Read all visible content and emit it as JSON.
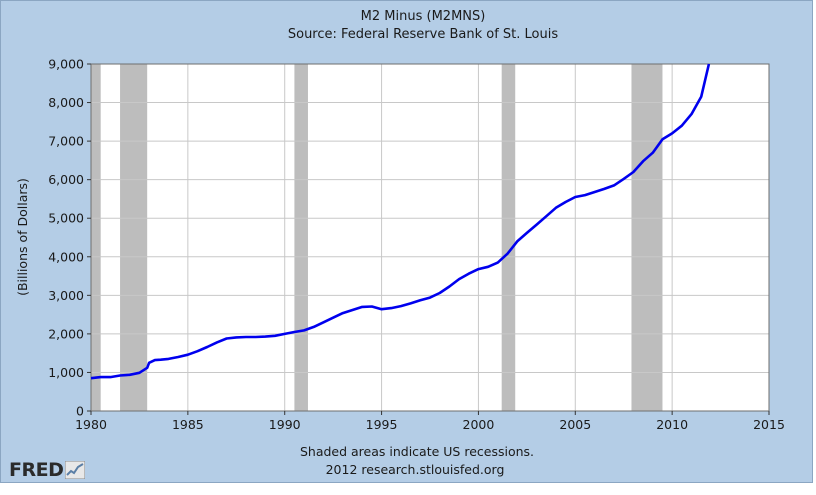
{
  "brand": {
    "logo_text": "FRED"
  },
  "notes": {
    "recession_note": "Shaded areas indicate US recessions.",
    "credit": "2012 research.stlouisfed.org"
  },
  "colors": {
    "background": "#b4cde6",
    "plot_bg": "#ffffff",
    "grid": "#c8c8c8",
    "recession": "#bdbdbd",
    "line": "#0000ee"
  },
  "chart_data": {
    "type": "line",
    "title": "M2 Minus (M2MNS)",
    "subtitle": "Source: Federal Reserve Bank of St. Louis",
    "xlabel": "",
    "ylabel": "(Billions of Dollars)",
    "xlim": [
      1980,
      2015
    ],
    "ylim": [
      0,
      9000
    ],
    "x_ticks": [
      1980,
      1985,
      1990,
      1995,
      2000,
      2005,
      2010,
      2015
    ],
    "x_tick_labels": [
      "1980",
      "1985",
      "1990",
      "1995",
      "2000",
      "2005",
      "2010",
      "2015"
    ],
    "y_ticks": [
      0,
      1000,
      2000,
      3000,
      4000,
      5000,
      6000,
      7000,
      8000,
      9000
    ],
    "y_tick_labels": [
      "0",
      "1,000",
      "2,000",
      "3,000",
      "4,000",
      "5,000",
      "6,000",
      "7,000",
      "8,000",
      "9,000"
    ],
    "grid": true,
    "recessions": [
      {
        "start": 1980.0,
        "end": 1980.5
      },
      {
        "start": 1981.5,
        "end": 1982.9
      },
      {
        "start": 1990.5,
        "end": 1991.2
      },
      {
        "start": 2001.2,
        "end": 2001.9
      },
      {
        "start": 2007.9,
        "end": 2009.5
      }
    ],
    "series": [
      {
        "name": "M2 Minus (M2MNS)",
        "x": [
          1980.0,
          1980.5,
          1981.0,
          1981.5,
          1982.0,
          1982.5,
          1982.9,
          1983.0,
          1983.3,
          1983.6,
          1984.0,
          1984.5,
          1985.0,
          1985.5,
          1986.0,
          1986.5,
          1987.0,
          1987.5,
          1988.0,
          1988.5,
          1989.0,
          1989.5,
          1990.0,
          1990.5,
          1991.0,
          1991.5,
          1992.0,
          1992.5,
          1993.0,
          1993.5,
          1994.0,
          1994.5,
          1995.0,
          1995.5,
          1996.0,
          1996.5,
          1997.0,
          1997.5,
          1998.0,
          1998.5,
          1999.0,
          1999.5,
          2000.0,
          2000.5,
          2001.0,
          2001.5,
          2002.0,
          2002.5,
          2003.0,
          2003.5,
          2004.0,
          2004.5,
          2005.0,
          2005.5,
          2006.0,
          2006.5,
          2007.0,
          2007.5,
          2008.0,
          2008.5,
          2009.0,
          2009.5,
          2010.0,
          2010.5,
          2011.0,
          2011.5,
          2011.9
        ],
        "values": [
          850,
          880,
          880,
          920,
          940,
          990,
          1120,
          1250,
          1320,
          1330,
          1350,
          1400,
          1460,
          1550,
          1660,
          1780,
          1880,
          1910,
          1920,
          1920,
          1930,
          1950,
          2000,
          2050,
          2090,
          2180,
          2300,
          2420,
          2540,
          2620,
          2700,
          2710,
          2640,
          2670,
          2720,
          2790,
          2870,
          2940,
          3060,
          3230,
          3420,
          3560,
          3680,
          3740,
          3850,
          4080,
          4400,
          4620,
          4830,
          5050,
          5270,
          5420,
          5550,
          5600,
          5680,
          5760,
          5850,
          6020,
          6200,
          6480,
          6700,
          7050,
          7200,
          7400,
          7700,
          8150,
          9000
        ]
      }
    ]
  }
}
